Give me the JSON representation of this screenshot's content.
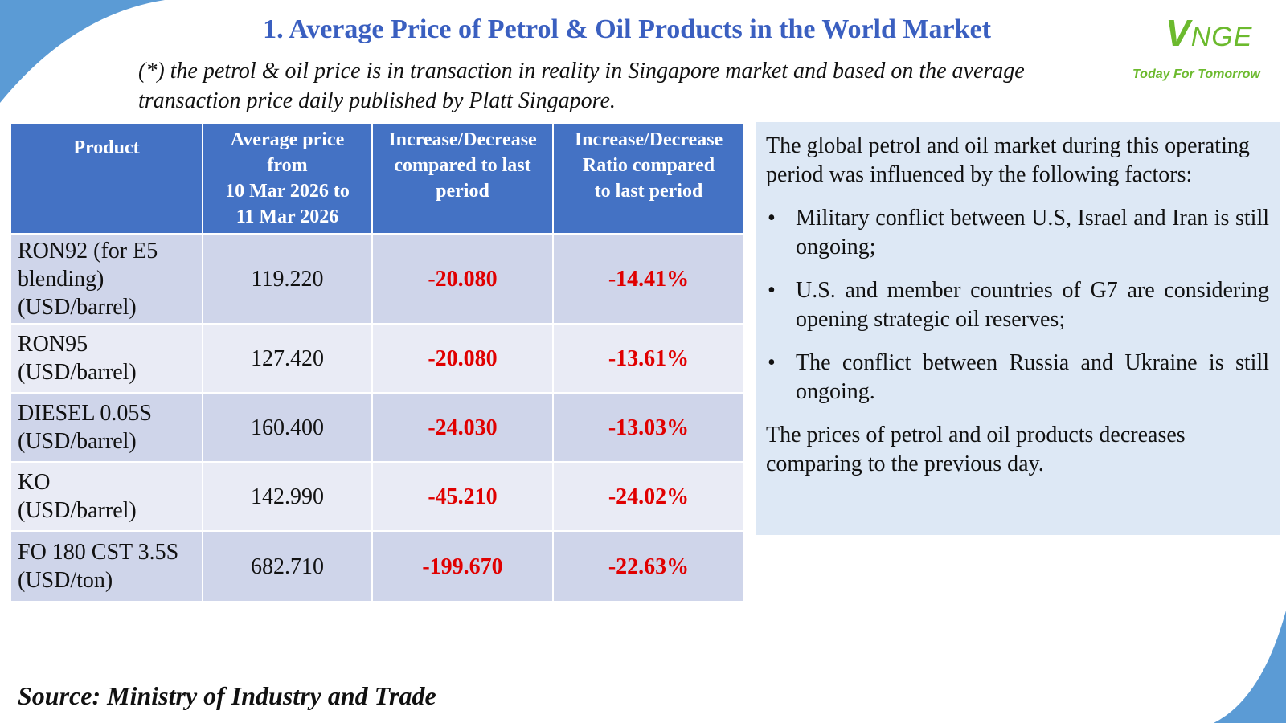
{
  "title": "1. Average Price of Petrol & Oil Products in the World Market",
  "subtitle_line1": "(*) the petrol & oil price is in transaction in reality in Singapore market and based on the average",
  "subtitle_line2": "transaction price daily published by Platt Singapore.",
  "logo": {
    "mark_initial": "V",
    "mark_rest": "NGE",
    "tagline": "Today For Tomorrow",
    "color": "#6cba2e"
  },
  "table": {
    "headers": [
      "Product",
      [
        "Average price",
        "from",
        "10 Mar  2026 to",
        "11 Mar 2026"
      ],
      [
        "Increase/Decrease",
        "compared to last",
        "period"
      ],
      [
        "Increase/Decrease",
        "Ratio compared",
        "to last period"
      ]
    ],
    "rows": [
      {
        "product": [
          "RON92 (for E5",
          "blending)",
          "(USD/barrel)"
        ],
        "price": "119.220",
        "change": "-20.080",
        "ratio": "-14.41%"
      },
      {
        "product": [
          "RON95",
          "(USD/barrel)"
        ],
        "price": "127.420",
        "change": "-20.080",
        "ratio": "-13.61%"
      },
      {
        "product": [
          "DIESEL 0.05S",
          "(USD/barrel)"
        ],
        "price": "160.400",
        "change": "-24.030",
        "ratio": "-13.03%"
      },
      {
        "product": [
          "KO",
          "(USD/barrel)"
        ],
        "price": "142.990",
        "change": "-45.210",
        "ratio": "-24.02%"
      },
      {
        "product": [
          "FO 180 CST 3.5S",
          "(USD/ton)"
        ],
        "price": "682.710",
        "change": "-199.670",
        "ratio": "-22.63%"
      }
    ]
  },
  "factors": {
    "intro": "The global petrol and oil market during this operating period was influenced by the following factors:",
    "bullets": [
      "Military conflict between U.S, Israel and Iran is still ongoing;",
      "U.S. and member countries of G7 are considering opening strategic oil reserves;",
      "The conflict between Russia and Ukraine is still ongoing."
    ],
    "conclusion": "The prices of petrol and oil products decreases comparing to the previous day."
  },
  "source": "Source: Ministry of Industry and Trade",
  "colors": {
    "header_blue": "#4472c4",
    "title_blue": "#3a5fc0",
    "negative_red": "#e00000",
    "panel_bg": "#dde8f5",
    "row_dark": "#cfd5ea",
    "row_light": "#e9ebf5"
  }
}
